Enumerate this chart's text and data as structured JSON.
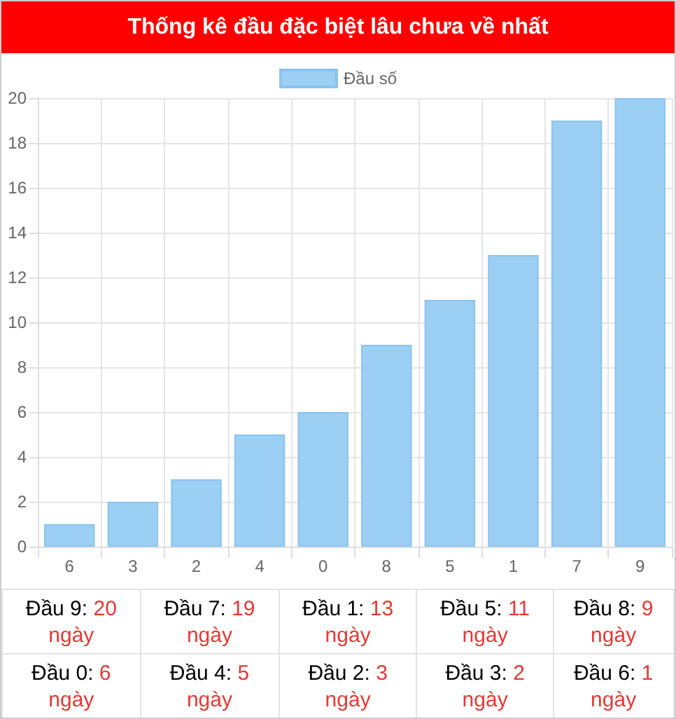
{
  "chart_data": {
    "type": "bar",
    "title": "Thống kê đầu đặc biệt lâu chưa về nhất",
    "categories": [
      "6",
      "3",
      "2",
      "4",
      "0",
      "8",
      "5",
      "1",
      "7",
      "9"
    ],
    "series": [
      {
        "name": "Đầu số",
        "color": "#9ccff4",
        "values": [
          1,
          2,
          3,
          5,
          6,
          9,
          11,
          13,
          19,
          20
        ]
      }
    ],
    "ylim": [
      0,
      20
    ],
    "yticks": [
      0,
      2,
      4,
      6,
      8,
      10,
      12,
      14,
      16,
      18,
      20
    ],
    "grid": true,
    "legend": "top",
    "annotations": [
      "Đầu 9: 20 ngày",
      "Đầu 7: 19 ngày",
      "Đầu 1: 13 ngày",
      "Đầu 5: 11 ngày",
      "Đầu 8: 9 ngày",
      "Đầu 0: 6 ngày",
      "Đầu 4: 5 ngày",
      "Đầu 2: 3 ngày",
      "Đầu 3: 2 ngày",
      "Đầu 6: 1 ngày"
    ]
  }
}
